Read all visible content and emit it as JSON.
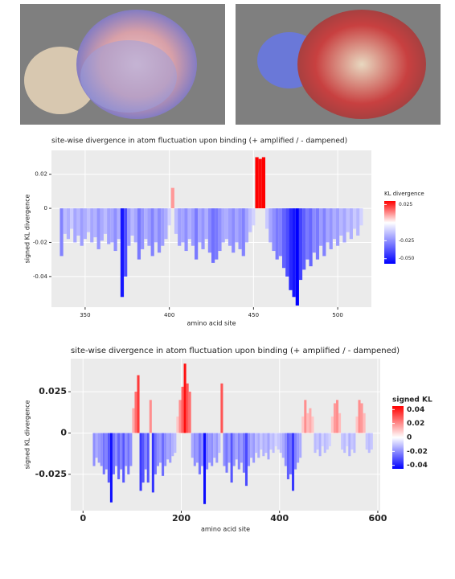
{
  "chart_data": [
    {
      "type": "bar",
      "title": "site-wise divergence in atom fluctuation upon binding (+ amplified / - dampened)",
      "x_label": "amino acid site",
      "y_label": "signed KL divergence",
      "legend_title": "KL divergence",
      "x": [
        335,
        337,
        339,
        341,
        343,
        345,
        347,
        349,
        351,
        353,
        355,
        357,
        359,
        361,
        363,
        365,
        367,
        369,
        371,
        373,
        375,
        377,
        379,
        381,
        383,
        385,
        387,
        389,
        391,
        393,
        395,
        397,
        399,
        401,
        403,
        405,
        407,
        409,
        411,
        413,
        415,
        417,
        419,
        421,
        423,
        425,
        427,
        429,
        431,
        433,
        435,
        437,
        439,
        441,
        443,
        445,
        447,
        449,
        451,
        453,
        455,
        457,
        459,
        461,
        463,
        465,
        467,
        469,
        471,
        473,
        475,
        477,
        479,
        481,
        483,
        485,
        487,
        489,
        491,
        493,
        495,
        497,
        499,
        501,
        503,
        505,
        507,
        509,
        511,
        513
      ],
      "values": [
        -0.028,
        -0.015,
        -0.018,
        -0.012,
        -0.02,
        -0.016,
        -0.022,
        -0.018,
        -0.014,
        -0.02,
        -0.017,
        -0.024,
        -0.019,
        -0.015,
        -0.021,
        -0.02,
        -0.025,
        -0.018,
        -0.052,
        -0.04,
        -0.022,
        -0.016,
        -0.02,
        -0.03,
        -0.024,
        -0.018,
        -0.022,
        -0.028,
        -0.02,
        -0.026,
        -0.022,
        -0.018,
        -0.01,
        0.012,
        -0.015,
        -0.022,
        -0.02,
        -0.025,
        -0.018,
        -0.022,
        -0.03,
        -0.02,
        -0.024,
        -0.018,
        -0.026,
        -0.032,
        -0.03,
        -0.025,
        -0.02,
        -0.018,
        -0.022,
        -0.026,
        -0.02,
        -0.024,
        -0.028,
        -0.02,
        -0.014,
        -0.01,
        0.03,
        0.029,
        0.03,
        -0.012,
        -0.02,
        -0.025,
        -0.03,
        -0.028,
        -0.035,
        -0.04,
        -0.048,
        -0.052,
        -0.057,
        -0.042,
        -0.036,
        -0.03,
        -0.034,
        -0.026,
        -0.03,
        -0.022,
        -0.028,
        -0.02,
        -0.024,
        -0.018,
        -0.022,
        -0.016,
        -0.02,
        -0.014,
        -0.018,
        -0.012,
        -0.016,
        -0.01
      ],
      "xlim": [
        330,
        520
      ],
      "xticks": [
        350,
        400,
        450,
        500
      ],
      "ylim": [
        -0.058,
        0.034
      ],
      "yticks": [
        0.02,
        0,
        -0.02,
        -0.04
      ],
      "grid": true,
      "colors": {
        "low": "#0000ff",
        "mid": "#ffffff",
        "high": "#ff0000"
      },
      "color_limits": [
        -0.057,
        0.03
      ],
      "color_ticks": [
        0.025,
        -0.025,
        {
          "value": -0.05,
          "label": "-0.050"
        }
      ]
    },
    {
      "type": "bar",
      "title": "site-wise divergence in atom fluctuation upon binding (+ amplified / - dampened)",
      "x_label": "amino acid site",
      "y_label": "signed KL divergence",
      "legend_title": "signed KL",
      "x": [
        20,
        25,
        30,
        35,
        40,
        45,
        50,
        55,
        60,
        65,
        70,
        75,
        80,
        85,
        90,
        95,
        100,
        105,
        110,
        115,
        120,
        125,
        130,
        135,
        140,
        145,
        150,
        155,
        160,
        165,
        170,
        175,
        180,
        185,
        190,
        195,
        200,
        205,
        210,
        215,
        220,
        225,
        230,
        235,
        240,
        245,
        250,
        255,
        260,
        265,
        270,
        275,
        280,
        285,
        290,
        295,
        300,
        305,
        310,
        315,
        320,
        325,
        330,
        335,
        340,
        345,
        350,
        355,
        360,
        365,
        370,
        375,
        380,
        385,
        390,
        395,
        400,
        405,
        410,
        415,
        420,
        425,
        430,
        435,
        440,
        445,
        450,
        455,
        460,
        465,
        470,
        475,
        480,
        485,
        490,
        495,
        500,
        505,
        510,
        515,
        520,
        525,
        530,
        535,
        540,
        545,
        550,
        555,
        560,
        565,
        570,
        575,
        580,
        585
      ],
      "values": [
        -0.02,
        -0.015,
        -0.018,
        -0.02,
        -0.025,
        -0.022,
        -0.03,
        -0.042,
        -0.025,
        -0.02,
        -0.028,
        -0.022,
        -0.03,
        -0.02,
        -0.025,
        -0.02,
        0.015,
        0.025,
        0.035,
        -0.035,
        -0.03,
        -0.022,
        -0.03,
        0.02,
        -0.036,
        -0.025,
        -0.02,
        -0.018,
        -0.026,
        -0.02,
        -0.016,
        -0.018,
        -0.014,
        -0.012,
        0.01,
        0.02,
        0.028,
        0.042,
        0.03,
        0.025,
        -0.015,
        -0.02,
        -0.018,
        -0.025,
        -0.02,
        -0.043,
        -0.022,
        -0.018,
        -0.02,
        -0.015,
        -0.018,
        -0.012,
        0.03,
        -0.02,
        -0.024,
        -0.018,
        -0.03,
        -0.02,
        -0.016,
        -0.022,
        -0.018,
        -0.024,
        -0.032,
        -0.02,
        -0.015,
        -0.018,
        -0.012,
        -0.015,
        -0.01,
        -0.014,
        -0.012,
        -0.016,
        -0.01,
        -0.012,
        -0.008,
        -0.01,
        -0.012,
        -0.015,
        -0.02,
        -0.028,
        -0.025,
        -0.035,
        -0.022,
        -0.018,
        -0.015,
        0.01,
        0.02,
        0.012,
        0.015,
        0.01,
        -0.012,
        -0.01,
        -0.014,
        -0.008,
        -0.012,
        -0.01,
        -0.008,
        0.01,
        0.018,
        0.02,
        0.012,
        -0.01,
        -0.012,
        -0.008,
        -0.014,
        -0.01,
        -0.012,
        0.01,
        0.02,
        0.018,
        0.012,
        -0.01,
        -0.012,
        -0.01
      ],
      "xlim": [
        -25,
        605
      ],
      "xticks": [
        0,
        200,
        400,
        600
      ],
      "ylim": [
        -0.047,
        0.045
      ],
      "yticks": [
        0.025,
        0,
        -0.025
      ],
      "grid": true,
      "colors": {
        "low": "#0000ff",
        "mid": "#ffffff",
        "high": "#ff0000"
      },
      "color_limits": [
        -0.045,
        0.045
      ],
      "color_ticks": [
        0.04,
        0.02,
        0,
        -0.02,
        -0.04
      ]
    }
  ]
}
